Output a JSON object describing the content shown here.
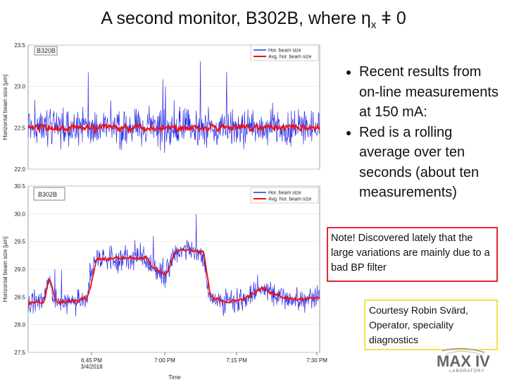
{
  "slide": {
    "title": "A second monitor, B302B, where η",
    "title_sub": "x",
    "title_tail": " ǂ 0",
    "bullets": [
      "Recent results from on-line measurements at 150 mA:",
      "Red is a rolling average over ten seconds (about ten measurements)"
    ],
    "note": "Note! Discovered lately that the large variations are mainly due to a bad BP filter",
    "credit": "Courtesy Robin Svärd, Operator, speciality diagnostics",
    "logo": "MAX IV",
    "logo_sub": "LABORATORY"
  },
  "colors": {
    "raw": "#2e2ee6",
    "avg": "#ee1111",
    "note_border": "#e0282c",
    "credit_border": "#f2e24a"
  },
  "chart_data": [
    {
      "type": "line",
      "panel_label": "B320B",
      "ylabel": "Horizontal beam size [μm]",
      "ylim": [
        22.0,
        23.5
      ],
      "yticks": [
        "23.5",
        "23.0",
        "22.5",
        "22.0"
      ],
      "legend_position": "top-right",
      "series": [
        {
          "name": "Hor. beam size",
          "role": "raw",
          "mean": 22.5,
          "noise": 0.22
        },
        {
          "name": "Avg. hor. beam size",
          "role": "avg",
          "mean": 22.5,
          "noise": 0.05
        }
      ]
    },
    {
      "type": "line",
      "panel_label": "B302B",
      "ylabel": "Horizontal beam size [μm]",
      "xlabel": "Time",
      "ylim": [
        27.5,
        30.5
      ],
      "yticks": [
        "30.5",
        "30.0",
        "29.5",
        "29.0",
        "28.5",
        "28.0",
        "27.5"
      ],
      "xticks": [
        "6:45 PM\n3/4/2018",
        "7:00 PM",
        "7:15 PM",
        "7:30 PM"
      ],
      "legend_position": "top-right",
      "series": [
        {
          "name": "Hor. beam size",
          "role": "raw",
          "noise": 0.2
        },
        {
          "name": "Avg. hor. beam size",
          "role": "avg",
          "noise": 0.04,
          "levels": [
            [
              0.0,
              28.4
            ],
            [
              0.05,
              28.4
            ],
            [
              0.07,
              28.9
            ],
            [
              0.09,
              28.4
            ],
            [
              0.2,
              28.45
            ],
            [
              0.23,
              29.2
            ],
            [
              0.4,
              29.2
            ],
            [
              0.43,
              29.0
            ],
            [
              0.47,
              28.9
            ],
            [
              0.5,
              29.3
            ],
            [
              0.53,
              29.35
            ],
            [
              0.6,
              29.3
            ],
            [
              0.62,
              28.5
            ],
            [
              0.68,
              28.4
            ],
            [
              0.75,
              28.5
            ],
            [
              0.8,
              28.7
            ],
            [
              0.83,
              28.55
            ],
            [
              0.9,
              28.45
            ],
            [
              1.0,
              28.5
            ]
          ]
        }
      ]
    }
  ]
}
